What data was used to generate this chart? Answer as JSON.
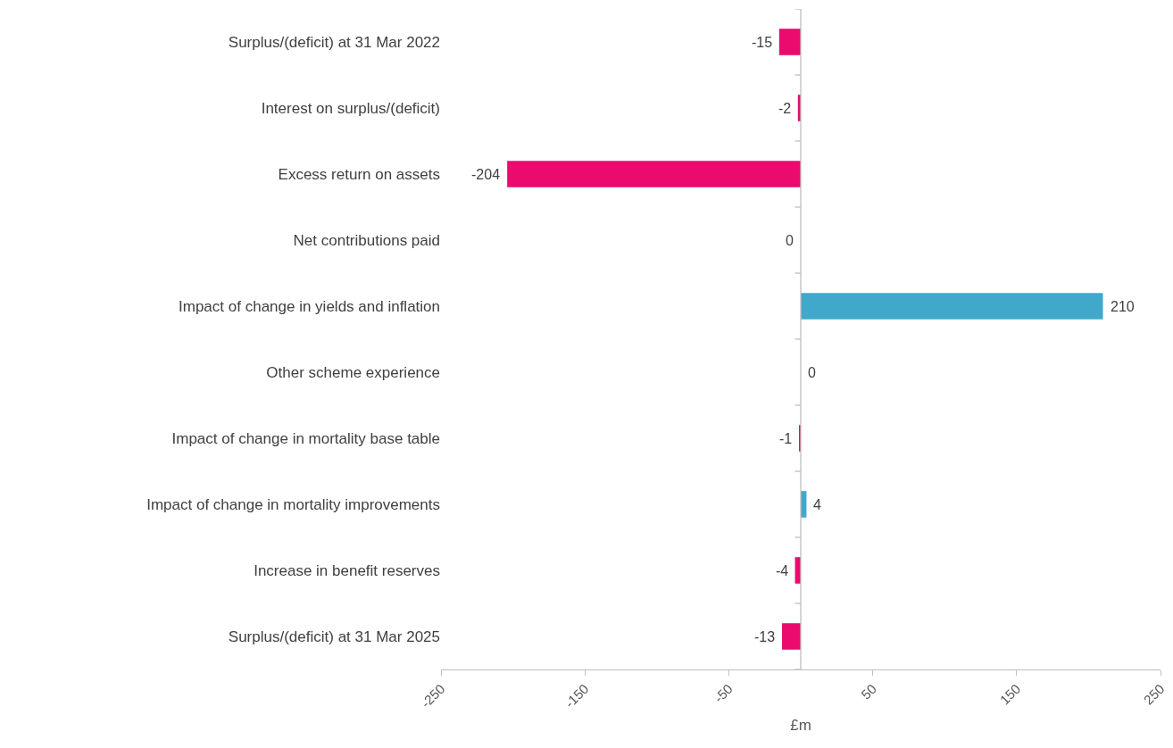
{
  "chart_data": {
    "type": "bar",
    "orientation": "horizontal",
    "categories": [
      "Surplus/(deficit) at 31 Mar 2022",
      "Interest on surplus/(deficit)",
      "Excess return on assets",
      "Net contributions paid",
      "Impact of change in yields and inflation",
      "Other scheme experience",
      "Impact of change in mortality base table",
      "Impact of change in mortality improvements",
      "Increase in benefit reserves",
      "Surplus/(deficit) at 31 Mar 2025"
    ],
    "values": [
      -15,
      -2,
      -204,
      0,
      210,
      0,
      -1,
      4,
      -4,
      -13
    ],
    "colors": [
      "#eb0a6e",
      "#eb0a6e",
      "#eb0a6e",
      "#eb0a6e",
      "#41a8cc",
      "#41a8cc",
      "#eb0a6e",
      "#41a8cc",
      "#eb0a6e",
      "#eb0a6e"
    ],
    "xlim": [
      -250,
      250
    ],
    "xticks": [
      -250,
      -150,
      -50,
      50,
      150,
      250
    ],
    "xlabel": "£m",
    "data_labels": true,
    "grid": false
  }
}
